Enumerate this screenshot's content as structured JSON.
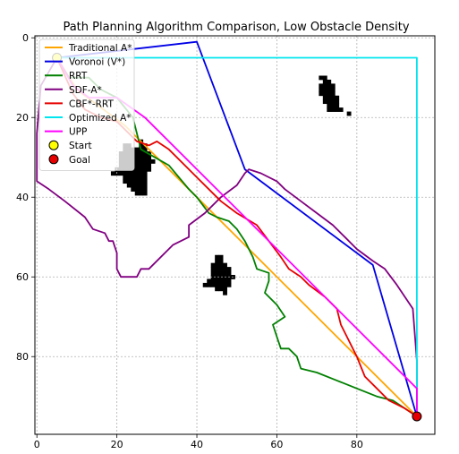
{
  "chart_data": {
    "type": "line",
    "title": "Path Planning Algorithm Comparison, Low Obstacle Density",
    "xlabel": "",
    "ylabel": "",
    "xlim": [
      -0.5,
      99.5
    ],
    "ylim": [
      99.5,
      -0.5
    ],
    "y_inverted": true,
    "x_ticks": [
      0,
      20,
      40,
      60,
      80
    ],
    "y_ticks": [
      0,
      20,
      40,
      60,
      80
    ],
    "grid": true,
    "legend_position": "top-left",
    "obstacles": [
      {
        "cells": [
          [
            71,
            10
          ],
          [
            72,
            10
          ],
          [
            72,
            11
          ],
          [
            73,
            11
          ],
          [
            71,
            12
          ],
          [
            72,
            12
          ],
          [
            73,
            12
          ],
          [
            74,
            12
          ],
          [
            71,
            13
          ],
          [
            72,
            13
          ],
          [
            73,
            13
          ],
          [
            74,
            13
          ],
          [
            71,
            14
          ],
          [
            72,
            14
          ],
          [
            73,
            14
          ],
          [
            74,
            14
          ],
          [
            72,
            15
          ],
          [
            73,
            15
          ],
          [
            74,
            15
          ],
          [
            75,
            15
          ],
          [
            72,
            16
          ],
          [
            73,
            16
          ],
          [
            74,
            16
          ],
          [
            75,
            16
          ],
          [
            73,
            17
          ],
          [
            74,
            17
          ],
          [
            75,
            17
          ],
          [
            73,
            18
          ],
          [
            74,
            18
          ],
          [
            75,
            18
          ],
          [
            76,
            18
          ],
          [
            78,
            19
          ]
        ]
      },
      {
        "cells": [
          [
            26,
            26
          ],
          [
            22,
            27
          ],
          [
            23,
            27
          ],
          [
            26,
            27
          ],
          [
            27,
            27
          ],
          [
            22,
            28
          ],
          [
            23,
            28
          ],
          [
            24,
            28
          ],
          [
            25,
            28
          ],
          [
            26,
            28
          ],
          [
            27,
            28
          ],
          [
            21,
            29
          ],
          [
            22,
            29
          ],
          [
            23,
            29
          ],
          [
            24,
            29
          ],
          [
            25,
            29
          ],
          [
            26,
            29
          ],
          [
            27,
            29
          ],
          [
            28,
            29
          ],
          [
            21,
            30
          ],
          [
            22,
            30
          ],
          [
            23,
            30
          ],
          [
            24,
            30
          ],
          [
            25,
            30
          ],
          [
            26,
            30
          ],
          [
            27,
            30
          ],
          [
            28,
            30
          ],
          [
            21,
            31
          ],
          [
            22,
            31
          ],
          [
            23,
            31
          ],
          [
            24,
            31
          ],
          [
            25,
            31
          ],
          [
            26,
            31
          ],
          [
            27,
            31
          ],
          [
            28,
            31
          ],
          [
            29,
            31
          ],
          [
            21,
            32
          ],
          [
            22,
            32
          ],
          [
            23,
            32
          ],
          [
            24,
            32
          ],
          [
            25,
            32
          ],
          [
            26,
            32
          ],
          [
            27,
            32
          ],
          [
            28,
            32
          ],
          [
            20,
            33
          ],
          [
            21,
            33
          ],
          [
            22,
            33
          ],
          [
            23,
            33
          ],
          [
            24,
            33
          ],
          [
            25,
            33
          ],
          [
            26,
            33
          ],
          [
            27,
            33
          ],
          [
            28,
            33
          ],
          [
            19,
            34
          ],
          [
            20,
            34
          ],
          [
            21,
            34
          ],
          [
            22,
            34
          ],
          [
            23,
            34
          ],
          [
            24,
            34
          ],
          [
            25,
            34
          ],
          [
            26,
            34
          ],
          [
            27,
            34
          ],
          [
            22,
            35
          ],
          [
            23,
            35
          ],
          [
            24,
            35
          ],
          [
            25,
            35
          ],
          [
            26,
            35
          ],
          [
            27,
            35
          ],
          [
            22,
            36
          ],
          [
            23,
            36
          ],
          [
            24,
            36
          ],
          [
            25,
            36
          ],
          [
            26,
            36
          ],
          [
            27,
            36
          ],
          [
            23,
            37
          ],
          [
            24,
            37
          ],
          [
            25,
            37
          ],
          [
            26,
            37
          ],
          [
            27,
            37
          ],
          [
            24,
            38
          ],
          [
            25,
            38
          ],
          [
            26,
            38
          ],
          [
            27,
            38
          ],
          [
            25,
            39
          ],
          [
            26,
            39
          ],
          [
            27,
            39
          ]
        ]
      },
      {
        "cells": [
          [
            45,
            55
          ],
          [
            46,
            55
          ],
          [
            45,
            56
          ],
          [
            46,
            56
          ],
          [
            44,
            57
          ],
          [
            45,
            57
          ],
          [
            46,
            57
          ],
          [
            47,
            57
          ],
          [
            44,
            58
          ],
          [
            45,
            58
          ],
          [
            46,
            58
          ],
          [
            47,
            58
          ],
          [
            48,
            58
          ],
          [
            44,
            59
          ],
          [
            45,
            59
          ],
          [
            46,
            59
          ],
          [
            47,
            59
          ],
          [
            48,
            59
          ],
          [
            44,
            60
          ],
          [
            45,
            60
          ],
          [
            46,
            60
          ],
          [
            47,
            60
          ],
          [
            48,
            60
          ],
          [
            49,
            60
          ],
          [
            43,
            61
          ],
          [
            44,
            61
          ],
          [
            45,
            61
          ],
          [
            46,
            61
          ],
          [
            47,
            61
          ],
          [
            48,
            61
          ],
          [
            42,
            62
          ],
          [
            43,
            62
          ],
          [
            44,
            62
          ],
          [
            45,
            62
          ],
          [
            46,
            62
          ],
          [
            47,
            62
          ],
          [
            48,
            62
          ],
          [
            45,
            63
          ],
          [
            46,
            63
          ],
          [
            47,
            63
          ],
          [
            47,
            64
          ]
        ]
      }
    ],
    "series": [
      {
        "name": "Traditional A*",
        "color": "#ffa500",
        "width": 1.8,
        "points": [
          [
            5,
            5
          ],
          [
            10,
            13
          ],
          [
            22,
            22
          ],
          [
            38,
            38
          ],
          [
            95,
            95
          ]
        ]
      },
      {
        "name": "Voronoi (V*)",
        "color": "#0000e6",
        "width": 1.8,
        "points": [
          [
            5,
            5
          ],
          [
            40,
            1
          ],
          [
            52,
            33
          ],
          [
            84,
            57
          ],
          [
            95,
            95
          ]
        ]
      },
      {
        "name": "RRT",
        "color": "#008000",
        "width": 1.8,
        "points": [
          [
            5,
            5
          ],
          [
            8,
            10
          ],
          [
            13,
            10
          ],
          [
            16,
            13
          ],
          [
            20,
            15
          ],
          [
            24,
            20
          ],
          [
            25,
            24
          ],
          [
            26,
            28
          ],
          [
            33,
            32
          ],
          [
            38,
            38
          ],
          [
            40,
            40
          ],
          [
            43,
            44
          ],
          [
            45,
            45
          ],
          [
            48,
            46
          ],
          [
            50,
            48
          ],
          [
            52,
            51
          ],
          [
            54,
            55
          ],
          [
            55,
            58
          ],
          [
            58,
            59
          ],
          [
            58,
            61
          ],
          [
            57,
            64
          ],
          [
            60,
            67
          ],
          [
            62,
            70
          ],
          [
            59,
            72
          ],
          [
            60,
            75
          ],
          [
            61,
            78
          ],
          [
            63,
            78
          ],
          [
            65,
            80
          ],
          [
            66,
            83
          ],
          [
            70,
            84
          ],
          [
            75,
            86
          ],
          [
            80,
            88
          ],
          [
            85,
            90
          ],
          [
            89,
            91
          ],
          [
            95,
            95
          ]
        ]
      },
      {
        "name": "SDF-A*",
        "color": "#800080",
        "width": 1.8,
        "points": [
          [
            5,
            5
          ],
          [
            1,
            12
          ],
          [
            0,
            24
          ],
          [
            0,
            36
          ],
          [
            3,
            38
          ],
          [
            7,
            41
          ],
          [
            12,
            45
          ],
          [
            14,
            48
          ],
          [
            17,
            49
          ],
          [
            18,
            51
          ],
          [
            19,
            51
          ],
          [
            20,
            54
          ],
          [
            20,
            58
          ],
          [
            21,
            60
          ],
          [
            25,
            60
          ],
          [
            26,
            58
          ],
          [
            28,
            58
          ],
          [
            34,
            52
          ],
          [
            38,
            50
          ],
          [
            38,
            47
          ],
          [
            42,
            44
          ],
          [
            46,
            40
          ],
          [
            50,
            37
          ],
          [
            52,
            34
          ],
          [
            53,
            33
          ],
          [
            56,
            34
          ],
          [
            60,
            36
          ],
          [
            62,
            38
          ],
          [
            66,
            41
          ],
          [
            70,
            44
          ],
          [
            74,
            47
          ],
          [
            77,
            50
          ],
          [
            80,
            53
          ],
          [
            84,
            56
          ],
          [
            87,
            58
          ],
          [
            90,
            62
          ],
          [
            94,
            68
          ],
          [
            95,
            81
          ],
          [
            95,
            95
          ]
        ]
      },
      {
        "name": "CBF*-RRT",
        "color": "#e60000",
        "width": 1.8,
        "points": [
          [
            5,
            5
          ],
          [
            9,
            14
          ],
          [
            12,
            18
          ],
          [
            16,
            20
          ],
          [
            20,
            21
          ],
          [
            22,
            23
          ],
          [
            25,
            26
          ],
          [
            28,
            27
          ],
          [
            30,
            26
          ],
          [
            33,
            28
          ],
          [
            37,
            32
          ],
          [
            40,
            35
          ],
          [
            43,
            38
          ],
          [
            46,
            41
          ],
          [
            50,
            44
          ],
          [
            55,
            47
          ],
          [
            58,
            51
          ],
          [
            61,
            55
          ],
          [
            63,
            58
          ],
          [
            66,
            60
          ],
          [
            68,
            62
          ],
          [
            72,
            65
          ],
          [
            75,
            68
          ],
          [
            76,
            72
          ],
          [
            78,
            76
          ],
          [
            80,
            80
          ],
          [
            82,
            85
          ],
          [
            85,
            88
          ],
          [
            88,
            91
          ],
          [
            90,
            92
          ],
          [
            92,
            93
          ],
          [
            95,
            95
          ]
        ]
      },
      {
        "name": "Optimized A*",
        "color": "#00e5ee",
        "width": 1.8,
        "points": [
          [
            5,
            5
          ],
          [
            95,
            5
          ],
          [
            95,
            95
          ]
        ]
      },
      {
        "name": "UPP",
        "color": "#ff00ff",
        "width": 1.8,
        "points": [
          [
            5,
            5
          ],
          [
            9,
            12
          ],
          [
            13,
            15
          ],
          [
            20,
            15
          ],
          [
            27,
            20
          ],
          [
            95,
            88
          ],
          [
            95,
            95
          ]
        ]
      }
    ],
    "markers": [
      {
        "name": "Start",
        "x": 5,
        "y": 5,
        "color": "#ffff00"
      },
      {
        "name": "Goal",
        "x": 95,
        "y": 95,
        "color": "#e60000"
      }
    ]
  }
}
